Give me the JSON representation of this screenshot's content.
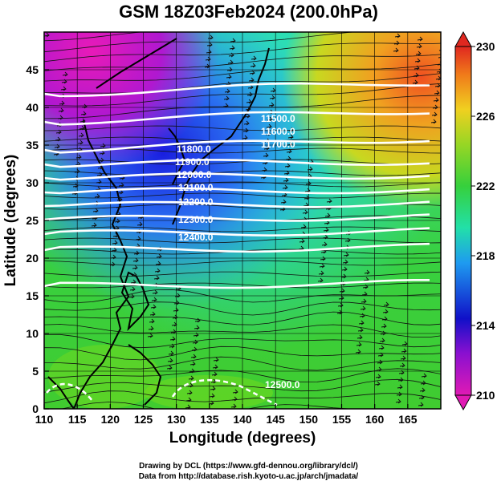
{
  "title": "GSM 18Z03Feb2024 (200.0hPa)",
  "xlabel": "Longitude (degrees)",
  "ylabel": "Latitude  (degrees)",
  "footer_line1": "Drawing by DCL (https://www.gfd-dennou.org/library/dcl/)",
  "footer_line2": "Data from http://database.rish.kyoto-u.ac.jp/arch/jmadata/",
  "map": {
    "lon_range": [
      110,
      170
    ],
    "lat_range": [
      0,
      50
    ],
    "x_ticks": [
      110,
      115,
      120,
      125,
      130,
      135,
      140,
      145,
      150,
      155,
      160,
      165
    ],
    "y_ticks": [
      0,
      5,
      10,
      15,
      20,
      25,
      30,
      35,
      40,
      45
    ],
    "gridlines": true,
    "shading_field": "temperature",
    "vectors": "wind streamlines",
    "contour_labels": [
      "11500.0",
      "11600.0",
      "11700.0",
      "11800.0",
      "11900.0",
      "12000.0",
      "12100.0",
      "12200.0",
      "12300.0",
      "12400.0",
      "12500.0"
    ]
  },
  "colorbar": {
    "ticks": [
      210,
      214,
      218,
      222,
      226,
      230
    ],
    "range": [
      210,
      230
    ],
    "colors": [
      "#e01ab4",
      "#1010c8",
      "#1e9bf0",
      "#22e0a8",
      "#36d03c",
      "#98d624",
      "#f0d020",
      "#f07a1a",
      "#e02820"
    ]
  }
}
